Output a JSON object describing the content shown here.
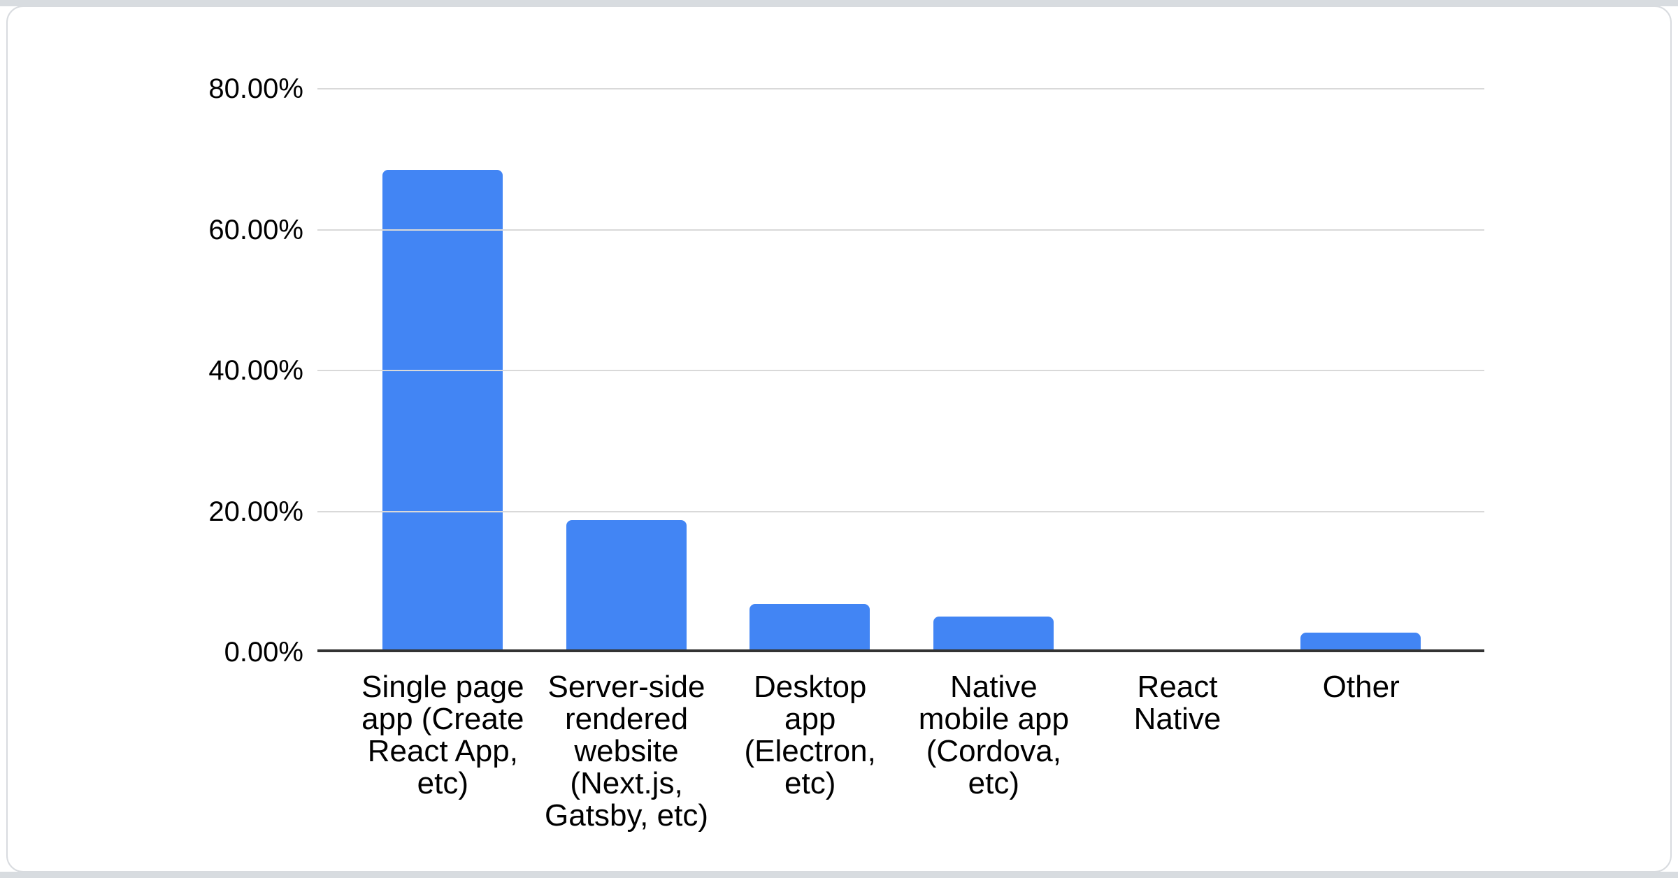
{
  "page": {
    "background_color": "#ffffff",
    "edge_strip_color": "#d8dce0",
    "card_background": "#ffffff",
    "card_border_color": "#d8dbdf"
  },
  "chart_data": {
    "type": "bar",
    "title": "",
    "legend": "none",
    "grid": true,
    "bar_color": "#4285f4",
    "gridline_color": "#d9d9d9",
    "axis_line_color": "#333333",
    "label_color": "#000000",
    "ylim": [
      0,
      80
    ],
    "ytick_step": 20,
    "yticks": [
      {
        "value": 0,
        "label": "0.00%"
      },
      {
        "value": 20,
        "label": "20.00%"
      },
      {
        "value": 40,
        "label": "40.00%"
      },
      {
        "value": 60,
        "label": "60.00%"
      },
      {
        "value": 80,
        "label": "80.00%"
      }
    ],
    "categories": [
      "Single page app (Create React App, etc)",
      "Server-side rendered website (Next.js, Gatsby, etc)",
      "Desktop app (Electron, etc)",
      "Native mobile app (Cordova, etc)",
      "React Native",
      "Other"
    ],
    "category_display": [
      "Single page\napp (Create\nReact App,\netc)",
      "Server-side\nrendered\nwebsite\n(Next.js,\nGatsby, etc)",
      "Desktop\napp\n(Electron,\netc)",
      "Native\nmobile app\n(Cordova,\netc)",
      "React\nNative",
      "Other"
    ],
    "values": [
      68.4,
      18.5,
      6.5,
      4.7,
      0,
      2.4
    ],
    "value_format": "percent"
  }
}
